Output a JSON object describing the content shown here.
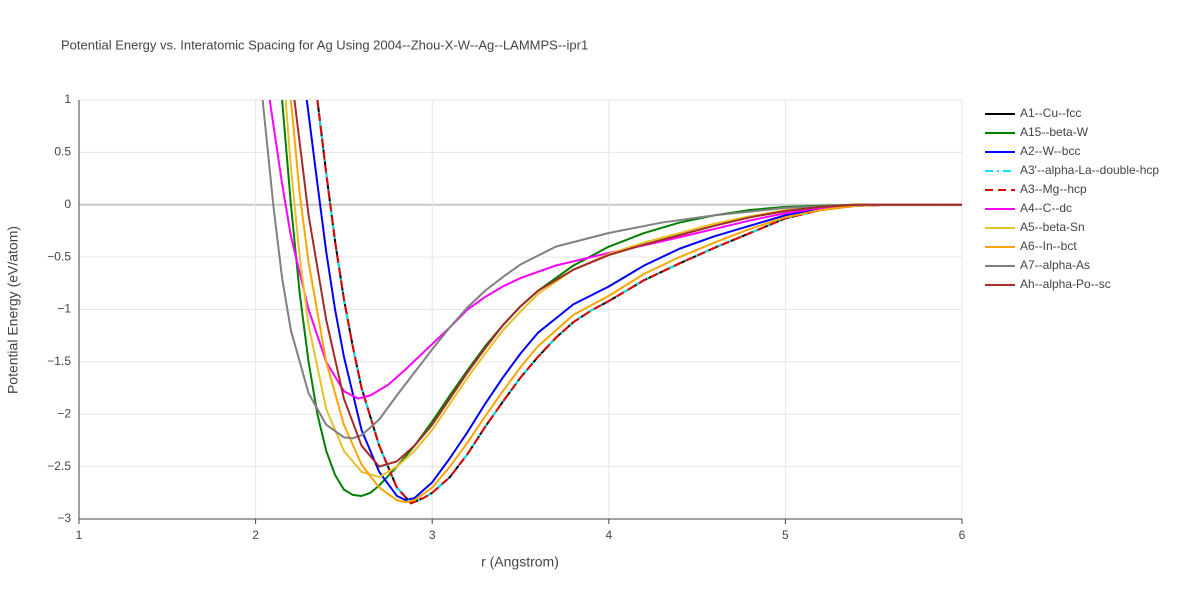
{
  "chart_data": {
    "type": "line",
    "title": "Potential Energy vs. Interatomic Spacing for Ag Using 2004--Zhou-X-W--Ag--LAMMPS--ipr1",
    "x_label": "r (Angstrom)",
    "y_label": "Potential Energy (eV/atom)",
    "xlim": [
      1,
      6
    ],
    "ylim": [
      -3,
      1
    ],
    "xticks": [
      1,
      2,
      3,
      4,
      5,
      6
    ],
    "yticks": [
      1,
      0.5,
      0,
      {
        "value": -0.5,
        "label": "−0.5"
      },
      {
        "value": -1,
        "label": "−1"
      },
      {
        "value": -1.5,
        "label": "−1.5"
      },
      {
        "value": -2,
        "label": "−2"
      },
      {
        "value": -2.5,
        "label": "−2.5"
      },
      {
        "value": -3,
        "label": "−3"
      }
    ],
    "grid": true,
    "series": [
      {
        "name": "A1--Cu--fcc",
        "color": "#000000",
        "dash": "solid",
        "x": [
          2.35,
          2.4,
          2.45,
          2.5,
          2.55,
          2.6,
          2.7,
          2.8,
          2.88,
          2.95,
          3.0,
          3.1,
          3.2,
          3.3,
          3.4,
          3.5,
          3.6,
          3.7,
          3.8,
          3.9,
          4.0,
          4.2,
          4.4,
          4.6,
          4.8,
          5.0,
          5.2,
          5.4,
          5.6,
          6.0
        ],
        "values": [
          1.0,
          0.3,
          -0.35,
          -0.9,
          -1.35,
          -1.75,
          -2.3,
          -2.7,
          -2.85,
          -2.8,
          -2.75,
          -2.6,
          -2.38,
          -2.12,
          -1.88,
          -1.65,
          -1.45,
          -1.27,
          -1.12,
          -1.01,
          -0.92,
          -0.72,
          -0.56,
          -0.41,
          -0.27,
          -0.13,
          -0.05,
          -0.01,
          0,
          0
        ]
      },
      {
        "name": "A15--beta-W",
        "color": "#008000",
        "dash": "solid",
        "x": [
          2.15,
          2.2,
          2.25,
          2.3,
          2.35,
          2.4,
          2.45,
          2.5,
          2.55,
          2.6,
          2.65,
          2.7,
          2.8,
          2.9,
          3.0,
          3.1,
          3.2,
          3.3,
          3.4,
          3.5,
          3.6,
          3.8,
          4.0,
          4.2,
          4.4,
          4.6,
          4.8,
          5.0,
          5.2,
          5.4,
          6.0
        ],
        "values": [
          1.0,
          0.0,
          -0.85,
          -1.5,
          -2.0,
          -2.35,
          -2.58,
          -2.72,
          -2.77,
          -2.78,
          -2.75,
          -2.68,
          -2.5,
          -2.3,
          -2.07,
          -1.82,
          -1.58,
          -1.35,
          -1.15,
          -0.97,
          -0.82,
          -0.58,
          -0.4,
          -0.27,
          -0.17,
          -0.1,
          -0.05,
          -0.02,
          -0.01,
          0,
          0
        ]
      },
      {
        "name": "A2--W--bcc",
        "color": "#0000ff",
        "dash": "solid",
        "x": [
          2.29,
          2.35,
          2.4,
          2.45,
          2.5,
          2.6,
          2.7,
          2.8,
          2.85,
          2.9,
          3.0,
          3.1,
          3.2,
          3.3,
          3.4,
          3.5,
          3.6,
          3.8,
          4.0,
          4.2,
          4.4,
          4.6,
          4.8,
          5.0,
          5.2,
          5.4,
          5.6,
          6.0
        ],
        "values": [
          1.0,
          0.2,
          -0.45,
          -1.0,
          -1.45,
          -2.15,
          -2.55,
          -2.78,
          -2.82,
          -2.8,
          -2.65,
          -2.42,
          -2.17,
          -1.9,
          -1.65,
          -1.42,
          -1.22,
          -0.95,
          -0.78,
          -0.58,
          -0.42,
          -0.3,
          -0.2,
          -0.1,
          -0.04,
          -0.01,
          0,
          0
        ]
      },
      {
        "name": "A3'--alpha-La--double-hcp",
        "color": "#00e5ee",
        "dash": "dashdot",
        "x": [
          2.35,
          2.4,
          2.45,
          2.5,
          2.55,
          2.6,
          2.7,
          2.8,
          2.88,
          2.95,
          3.0,
          3.1,
          3.2,
          3.3,
          3.4,
          3.5,
          3.6,
          3.7,
          3.8,
          3.9,
          4.0,
          4.2,
          4.4,
          4.6,
          4.8,
          5.0,
          5.2,
          5.4,
          5.6,
          6.0
        ],
        "values": [
          1.0,
          0.3,
          -0.35,
          -0.9,
          -1.35,
          -1.75,
          -2.3,
          -2.7,
          -2.85,
          -2.8,
          -2.75,
          -2.6,
          -2.38,
          -2.12,
          -1.88,
          -1.65,
          -1.45,
          -1.27,
          -1.12,
          -1.01,
          -0.92,
          -0.72,
          -0.56,
          -0.41,
          -0.27,
          -0.13,
          -0.05,
          -0.01,
          0,
          0
        ]
      },
      {
        "name": "A3--Mg--hcp",
        "color": "#e60000",
        "dash": "dash",
        "x": [
          2.35,
          2.4,
          2.45,
          2.5,
          2.55,
          2.6,
          2.7,
          2.8,
          2.88,
          2.95,
          3.0,
          3.1,
          3.2,
          3.3,
          3.4,
          3.5,
          3.6,
          3.7,
          3.8,
          3.9,
          4.0,
          4.2,
          4.4,
          4.6,
          4.8,
          5.0,
          5.2,
          5.4,
          5.6,
          6.0
        ],
        "values": [
          1.0,
          0.3,
          -0.35,
          -0.9,
          -1.35,
          -1.75,
          -2.3,
          -2.7,
          -2.85,
          -2.8,
          -2.75,
          -2.6,
          -2.38,
          -2.12,
          -1.88,
          -1.65,
          -1.45,
          -1.27,
          -1.12,
          -1.01,
          -0.92,
          -0.72,
          -0.56,
          -0.41,
          -0.27,
          -0.13,
          -0.05,
          -0.01,
          0,
          0
        ]
      },
      {
        "name": "A4--C--dc",
        "color": "#ff00ff",
        "dash": "solid",
        "x": [
          2.08,
          2.15,
          2.2,
          2.3,
          2.4,
          2.5,
          2.58,
          2.65,
          2.75,
          2.85,
          3.0,
          3.1,
          3.2,
          3.3,
          3.4,
          3.5,
          3.7,
          4.0,
          4.3,
          4.6,
          4.8,
          5.0,
          5.2,
          5.4,
          6.0
        ],
        "values": [
          1.0,
          0.2,
          -0.3,
          -1.0,
          -1.5,
          -1.78,
          -1.85,
          -1.82,
          -1.72,
          -1.57,
          -1.33,
          -1.17,
          -1.0,
          -0.88,
          -0.78,
          -0.7,
          -0.58,
          -0.46,
          -0.35,
          -0.23,
          -0.15,
          -0.08,
          -0.03,
          0,
          0
        ]
      },
      {
        "name": "A5--beta-Sn",
        "color": "#e6c229",
        "dash": "solid",
        "x": [
          2.17,
          2.2,
          2.25,
          2.3,
          2.4,
          2.5,
          2.6,
          2.7,
          2.8,
          2.9,
          3.0,
          3.1,
          3.2,
          3.3,
          3.4,
          3.5,
          3.6,
          3.8,
          4.0,
          4.2,
          4.4,
          4.6,
          4.8,
          5.0,
          5.2,
          5.4,
          6.0
        ],
        "values": [
          1.0,
          0.35,
          -0.5,
          -1.15,
          -1.95,
          -2.35,
          -2.55,
          -2.6,
          -2.5,
          -2.35,
          -2.15,
          -1.9,
          -1.65,
          -1.42,
          -1.2,
          -1.02,
          -0.85,
          -0.62,
          -0.47,
          -0.36,
          -0.27,
          -0.18,
          -0.11,
          -0.05,
          -0.02,
          0,
          0
        ]
      },
      {
        "name": "A6--In--bct",
        "color": "#ffa500",
        "dash": "solid",
        "x": [
          2.2,
          2.25,
          2.3,
          2.4,
          2.5,
          2.6,
          2.7,
          2.8,
          2.85,
          2.9,
          3.0,
          3.1,
          3.2,
          3.3,
          3.4,
          3.5,
          3.6,
          3.8,
          4.0,
          4.2,
          4.4,
          4.6,
          4.8,
          5.0,
          5.2,
          5.4,
          5.6,
          6.0
        ],
        "values": [
          1.0,
          0.1,
          -0.55,
          -1.5,
          -2.1,
          -2.48,
          -2.7,
          -2.82,
          -2.84,
          -2.82,
          -2.7,
          -2.5,
          -2.27,
          -2.02,
          -1.78,
          -1.55,
          -1.35,
          -1.05,
          -0.87,
          -0.66,
          -0.5,
          -0.36,
          -0.23,
          -0.12,
          -0.05,
          -0.01,
          0,
          0
        ]
      },
      {
        "name": "A7--alpha-As",
        "color": "#808080",
        "dash": "solid",
        "x": [
          2.04,
          2.1,
          2.15,
          2.2,
          2.3,
          2.4,
          2.5,
          2.55,
          2.6,
          2.7,
          2.8,
          2.9,
          3.0,
          3.1,
          3.2,
          3.3,
          3.4,
          3.5,
          3.7,
          4.0,
          4.3,
          4.6,
          5.0,
          5.4,
          6.0
        ],
        "values": [
          1.0,
          0.0,
          -0.7,
          -1.2,
          -1.8,
          -2.1,
          -2.22,
          -2.23,
          -2.2,
          -2.05,
          -1.82,
          -1.6,
          -1.38,
          -1.17,
          -0.98,
          -0.82,
          -0.69,
          -0.57,
          -0.4,
          -0.27,
          -0.17,
          -0.1,
          -0.03,
          0,
          0
        ]
      },
      {
        "name": "Ah--alpha-Po--sc",
        "color": "#a52a2a",
        "dash": "solid",
        "x": [
          2.22,
          2.3,
          2.4,
          2.5,
          2.6,
          2.7,
          2.8,
          2.9,
          3.0,
          3.1,
          3.2,
          3.3,
          3.4,
          3.5,
          3.6,
          3.8,
          4.0,
          4.2,
          4.4,
          4.6,
          4.8,
          5.0,
          5.2,
          5.4,
          6.0
        ],
        "values": [
          1.0,
          -0.1,
          -1.1,
          -1.85,
          -2.3,
          -2.5,
          -2.45,
          -2.3,
          -2.1,
          -1.85,
          -1.6,
          -1.37,
          -1.15,
          -0.97,
          -0.82,
          -0.62,
          -0.48,
          -0.38,
          -0.29,
          -0.2,
          -0.12,
          -0.06,
          -0.02,
          0,
          0
        ]
      }
    ]
  }
}
